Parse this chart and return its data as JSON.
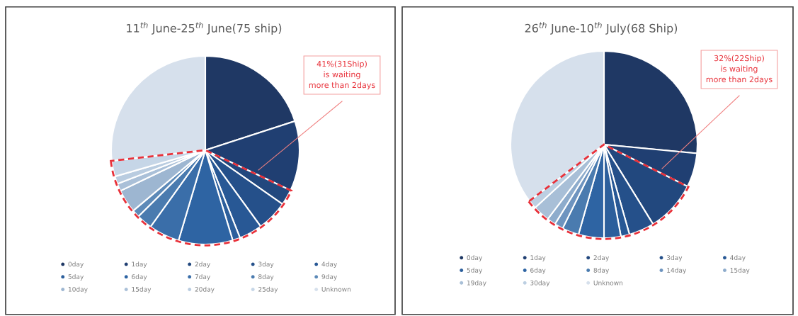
{
  "chart_data": [
    {
      "type": "pie",
      "title": "11$^{th}$ June-25$^{th}$ June(75 ship)",
      "categories": [
        "0day",
        "1day",
        "2day",
        "3day",
        "4day",
        "5day",
        "6day",
        "7day",
        "8day",
        "9day",
        "10day",
        "15day",
        "20day",
        "25day",
        "Unknown"
      ],
      "values": [
        20,
        12,
        2.7,
        5.3,
        4,
        1.3,
        9.3,
        5.3,
        2.7,
        1.3,
        4,
        1.3,
        1.3,
        2.7,
        26.8
      ],
      "colors": [
        "#1f3864",
        "#203f72",
        "#22487e",
        "#25508a",
        "#285895",
        "#2c5f9c",
        "#2e64a3",
        "#3a6ea9",
        "#4a7baf",
        "#5d8ab8",
        "#9db6d1",
        "#aac0d8",
        "#b9cce0",
        "#c6d6e7",
        "#d6e0ec"
      ],
      "legend": "bottom",
      "annotations": [
        "41%(31Ship)\nis waiting\nmore than 2days"
      ]
    },
    {
      "type": "pie",
      "title": "26$^{th}$ June-10$^{th}$ July(68 Ship)",
      "categories": [
        "0day",
        "1day",
        "2day",
        "3day",
        "4day",
        "5day",
        "6day",
        "8day",
        "14day",
        "15day",
        "19day",
        "30day",
        "Unknown"
      ],
      "values": [
        26.5,
        5.9,
        8.8,
        4.4,
        1.5,
        2.9,
        4.4,
        2.9,
        1.5,
        1.5,
        2.9,
        1.5,
        35.3
      ],
      "colors": [
        "#1f3864",
        "#203f72",
        "#22487e",
        "#25508a",
        "#285895",
        "#2c5f9c",
        "#2e64a3",
        "#4a7baf",
        "#6e94bf",
        "#8eaccc",
        "#a8bfd7",
        "#bccfe2",
        "#d6e0ec"
      ],
      "legend": "bottom",
      "annotations": [
        "32%(22Ship)\nis waiting\nmore than 2days"
      ]
    }
  ]
}
